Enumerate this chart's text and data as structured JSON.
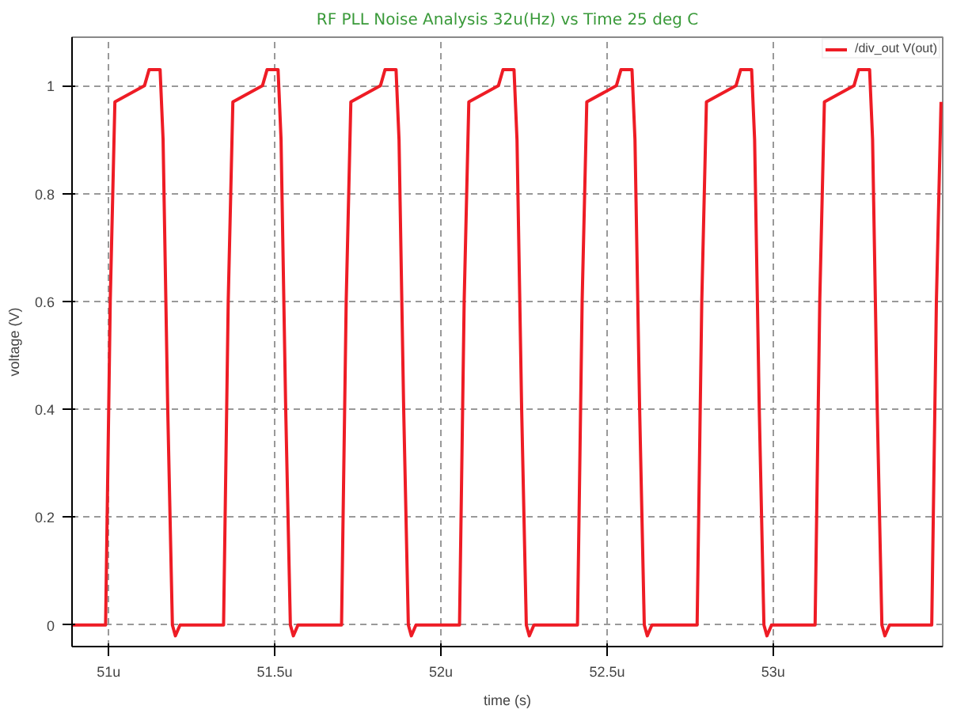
{
  "chart_data": {
    "type": "line",
    "title": "RF PLL Noise Analysis 32u(Hz) vs Time 25 deg C",
    "xlabel": "time (s)",
    "ylabel": "voltage (V)",
    "xlim": [
      50.89,
      53.51
    ],
    "ylim": [
      -0.04,
      1.09
    ],
    "xticks": [
      {
        "value": 51,
        "label": "51u"
      },
      {
        "value": 51.5,
        "label": "51.5u"
      },
      {
        "value": 52,
        "label": "52u"
      },
      {
        "value": 52.5,
        "label": "52.5u"
      },
      {
        "value": 53,
        "label": "53u"
      }
    ],
    "yticks": [
      0,
      0.2,
      0.4,
      0.6,
      0.8,
      1
    ],
    "grid": true,
    "legend": "top right",
    "line_style": "solid",
    "marker": "none",
    "x": [
      50.89,
      50.991,
      51.005,
      51.019,
      51.108,
      51.122,
      51.155,
      51.164,
      51.178,
      51.192,
      51.201,
      51.215,
      51.346,
      51.36,
      51.374,
      51.463,
      51.477,
      51.51,
      51.519,
      51.533,
      51.547,
      51.556,
      51.57,
      51.701,
      51.715,
      51.729,
      51.818,
      51.832,
      51.865,
      51.874,
      51.888,
      51.902,
      51.911,
      51.925,
      52.056,
      52.07,
      52.084,
      52.173,
      52.187,
      52.22,
      52.229,
      52.243,
      52.257,
      52.266,
      52.28,
      52.411,
      52.425,
      52.439,
      52.528,
      52.542,
      52.575,
      52.584,
      52.598,
      52.612,
      52.621,
      52.635,
      52.771,
      52.785,
      52.799,
      52.888,
      52.902,
      52.935,
      52.944,
      52.958,
      52.972,
      52.981,
      52.995,
      53.126,
      53.14,
      53.154,
      53.243,
      53.257,
      53.29,
      53.299,
      53.313,
      53.327,
      53.336,
      53.35,
      53.477,
      53.491,
      53.505
    ],
    "series": [
      {
        "name": "/div_out V(out)",
        "color": "#ee1c25",
        "values": [
          0,
          0,
          0.6,
          0.97,
          1,
          1.03,
          1.03,
          0.9,
          0.4,
          0,
          -0.02,
          0,
          0,
          0.6,
          0.97,
          1,
          1.03,
          1.03,
          0.9,
          0.4,
          0,
          -0.02,
          0,
          0,
          0.6,
          0.97,
          1,
          1.03,
          1.03,
          0.9,
          0.4,
          0,
          -0.02,
          0,
          0,
          0.6,
          0.97,
          1,
          1.03,
          1.03,
          0.9,
          0.4,
          0,
          -0.02,
          0,
          0,
          0.6,
          0.97,
          1,
          1.03,
          1.03,
          0.9,
          0.4,
          0,
          -0.02,
          0,
          0,
          0.6,
          0.97,
          1,
          1.03,
          1.03,
          0.9,
          0.4,
          0,
          -0.02,
          0,
          0,
          0.6,
          0.97,
          1,
          1.03,
          1.03,
          0.9,
          0.4,
          0,
          -0.02,
          0,
          0,
          0.6,
          0.97
        ]
      }
    ]
  }
}
